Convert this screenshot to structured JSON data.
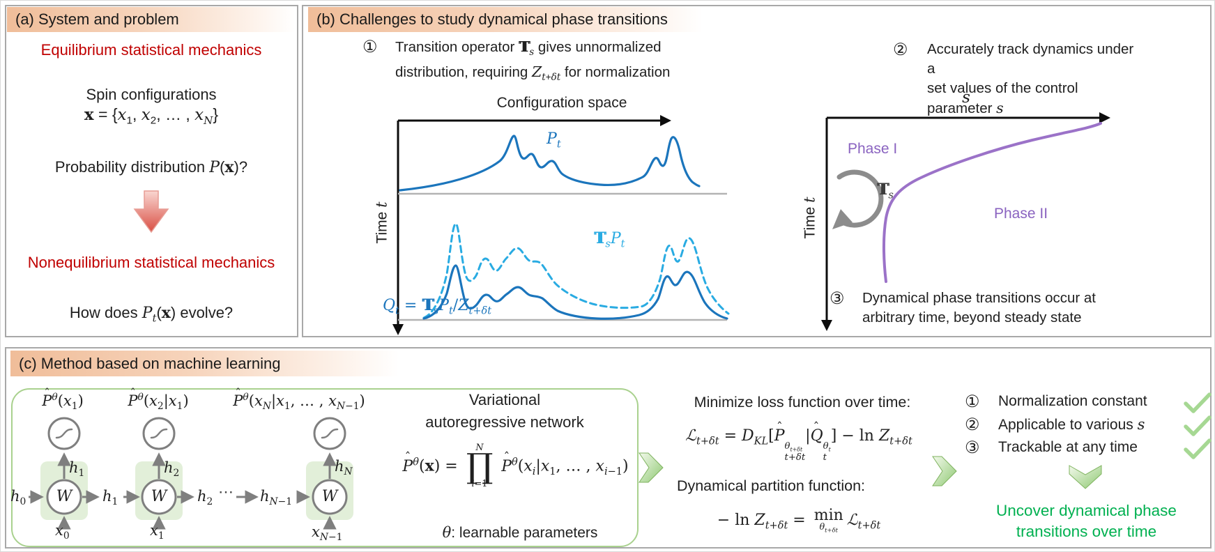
{
  "panel_a": {
    "title": "(a) System and problem",
    "equilibrium": "Equilibrium statistical mechanics",
    "spin_label": "Spin configurations",
    "spin_math": "<b>x</b> = {<i>x</i><sub>1</sub>, <i>x</i><sub>2</sub>, … , <i>x</i><sub><i>N</i></sub>}",
    "probability_q": "Probability distribution <i>P</i>(<b>x</b>)?",
    "nonequilibrium": "Nonequilibrium statistical mechanics",
    "evolve_q": "How does <i>P</i><sub><i>t</i></sub>(<b>x</b>) evolve?"
  },
  "panel_b": {
    "title": "(b) Challenges to study dynamical phase transitions",
    "item1": {
      "num": "①",
      "text": "Transition operator <dst>T<dsi>T</dsi></dst><sub><i>s</i></sub> gives unnormalized<br>distribution, requiring <i>Z</i><sub><i>t</i>+<i>δt</i></sub> for normalization"
    },
    "item2": {
      "num": "②",
      "text": "Accurately track dynamics under a<br>set values of the control parameter <i>s</i>"
    },
    "item3": {
      "num": "③",
      "text": "Dynamical phase transitions occur at<br>arbitrary time, beyond steady state"
    },
    "left_plot": {
      "x_label": "Configuration space",
      "y_label": "Time <i>t</i>",
      "pt_label": "<i>P</i><sub><i>t</i></sub>",
      "op_label": "<dst>T<dsi>T</dsi></dst><sub><i>s</i></sub>",
      "tspt_label": "<dst>T<dsi>T</dsi></dst><sub><i>s</i></sub><i>P</i><sub><i>t</i></sub>",
      "qt_label": "<i>Q</i><sub><i>t</i></sub> = <dst>T<dsi>T</dsi></dst><sub><i>s</i></sub><i>P</i><sub><i>t</i></sub>/<i>Z</i><sub><i>t</i>+<i>δt</i></sub>"
    },
    "right_plot": {
      "x_label": "<i>s</i>",
      "y_label": "Time <i>t</i>",
      "phase1": "Phase I",
      "phase2": "Phase II"
    }
  },
  "panel_c": {
    "title": "(c) Method based on machine learning",
    "network": {
      "outputs": [
        "<hat>P<hc>ˆ</hc></hat><sup><i>θ</i></sup>(<i>x</i><sub>1</sub>)",
        "<hat>P<hc>ˆ</hc></hat><sup><i>θ</i></sup>(<i>x</i><sub>2</sub>|<i>x</i><sub>1</sub>)",
        "<hat>P<hc>ˆ</hc></hat><sup><i>θ</i></sup>(<i>x</i><sub><i>N</i></sub>|<i>x</i><sub>1</sub>, … , <i>x</i><sub><i>N</i>−1</sub>)"
      ],
      "w": "W",
      "h0": "<i>h</i><sub>0</sub>",
      "h1_up": "<i>h</i><sub>1</sub>",
      "h2_up": "<i>h</i><sub>2</sub>",
      "hN_up": "<i>h</i><sub><i>N</i></sub>",
      "h1_flow": "<i>h</i><sub>1</sub>",
      "h2_flow": "<i>h</i><sub>2</sub>",
      "dots": "⋯",
      "hNm1_flow": "<i>h</i><sub><i>N</i>−1</sub>",
      "x0": "<i>x</i><sub>0</sub>",
      "x1": "<i>x</i><sub>1</sub>",
      "xNm1": "<i>x</i><sub><i>N</i>−1</sub>",
      "van_line1": "Variational",
      "van_line2": "autoregressive network",
      "formula": "<hat>P<hc>ˆ</hc></hat><sup><i>θ</i></sup>(<b>x</b>) = <stk class=prod><st><i>N</i></st><sm>∏</sm><sb><i>i</i>=1</sb></stk> <hat>P<hc>ˆ</hc></hat><sup><i>θ</i></sup>(<i>x</i><sub><i>i</i></sub>|<i>x</i><sub>1</sub>, … , <i>x</i><sub><i>i</i>−1</sub>)",
      "theta_note": "<i>θ</i>: learnable parameters"
    },
    "loss_title": "Minimize loss function over time:",
    "loss_formula": "<i>ℒ</i><sub><i>t</i>+<i>δt</i></sub> = <i>D</i><sub><i>KL</i></sub>[<hat>P<hc>ˆ</hc></hat><ss><sup><i>θ</i><sub><i>t</i>+<i>δt</i></sub></sup><sub><i>t</i>+<i>δt</i></sub></ss>|<hat>Q<hc>ˆ</hc></hat><ss><sup><i>θ</i><sub><i>t</i></sub></sup><sub><i>t</i></sub></ss>] − ln <i>Z</i><sub><i>t</i>+<i>δt</i></sub>",
    "partition_title": "Dynamical partition function:",
    "partition_formula": "− ln <i>Z</i><sub><i>t</i>+<i>δt</i></sub> = <stk class=mins><sm>min</sm><sb><i>θ</i><sub><i>t</i>+<i>δt</i></sub></sb></stk><i>ℒ</i><sub><i>t</i>+<i>δt</i></sub>",
    "results": [
      {
        "num": "①",
        "text": "Normalization constant"
      },
      {
        "num": "②",
        "text": "Applicable to various <i>s</i>"
      },
      {
        "num": "③",
        "text": "Trackable at any time"
      }
    ],
    "conclusion_line1": "Uncover dynamical phase",
    "conclusion_line2": "transitions over time"
  },
  "colors": {
    "header_gradient_start": "#f0bd99",
    "accent_red": "#c00000",
    "curve_blue": "#1b75bc",
    "curve_cyan_dashed": "#29abe2",
    "curve_purple": "#9b72c8",
    "green_box_border": "#a9d18e",
    "check_green": "#a6d893",
    "conclusion_green": "#00b050"
  }
}
